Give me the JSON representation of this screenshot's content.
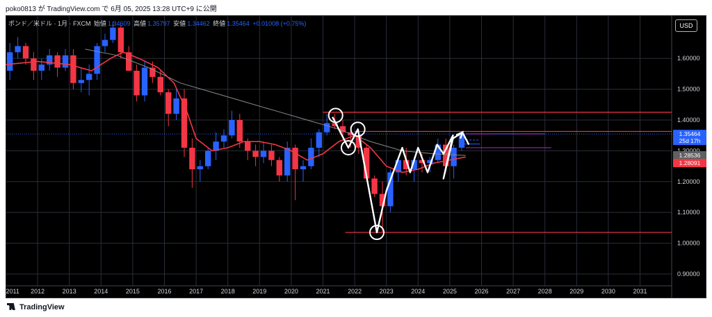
{
  "header": {
    "publish_line": "poko0813 が TradingView.com で 6月 05, 2025 13:28 UTC+9 に公開"
  },
  "legend": {
    "symbol": "ポンド／米ドル · 1月 · FXCM",
    "open_label": "始値",
    "open_value": "1.34609",
    "high_label": "高値",
    "high_value": "1.35797",
    "low_label": "安値",
    "low_value": "1.34462",
    "close_label": "終値",
    "close_value": "1.35464",
    "change": "+0.01008 (+0.75%)"
  },
  "currency_button": "USD",
  "price_axis": {
    "ticks": [
      "1.60000",
      "1.50000",
      "1.40000",
      "1.30000",
      "1.20000",
      "1.10000",
      "1.00000",
      "0.90000"
    ],
    "current_price": "1.35464",
    "countdown": "25d 17h",
    "ma_slow_value": "1.28536",
    "ma_fast_value": "1.28091"
  },
  "time_axis": {
    "ticks": [
      "2011",
      "2012",
      "2013",
      "2014",
      "2015",
      "2016",
      "2017",
      "2018",
      "2019",
      "2020",
      "2021",
      "2022",
      "2023",
      "2024",
      "2025",
      "2026",
      "2027",
      "2028",
      "2029",
      "2030",
      "2031"
    ]
  },
  "footer": {
    "brand": "TradingView"
  },
  "colors": {
    "up": "#2962ff",
    "down": "#f23645",
    "ma_fast": "#f23645",
    "ma_slow": "#8a8a8a",
    "drawing": "#ffffff",
    "level_line": "#f23645",
    "target_line": "#9c27b0",
    "background": "#000000",
    "grid": "#2a2e39"
  },
  "chart_data": {
    "type": "candlestick",
    "symbol": "GBPUSD",
    "interval": "1M",
    "ylim": [
      0.87,
      1.73
    ],
    "xlim": [
      2011.0,
      2032.0
    ],
    "grid": true,
    "candles": [
      [
        2011.0,
        1.56,
        1.65,
        1.53,
        1.62
      ],
      [
        2011.25,
        1.62,
        1.67,
        1.6,
        1.64
      ],
      [
        2011.5,
        1.64,
        1.65,
        1.58,
        1.6
      ],
      [
        2011.75,
        1.6,
        1.62,
        1.53,
        1.56
      ],
      [
        2012.0,
        1.56,
        1.6,
        1.53,
        1.58
      ],
      [
        2012.25,
        1.58,
        1.63,
        1.56,
        1.61
      ],
      [
        2012.5,
        1.61,
        1.62,
        1.54,
        1.57
      ],
      [
        2012.75,
        1.57,
        1.63,
        1.56,
        1.61
      ],
      [
        2013.0,
        1.61,
        1.63,
        1.5,
        1.52
      ],
      [
        2013.25,
        1.52,
        1.57,
        1.49,
        1.53
      ],
      [
        2013.5,
        1.53,
        1.58,
        1.48,
        1.55
      ],
      [
        2013.75,
        1.55,
        1.65,
        1.53,
        1.64
      ],
      [
        2014.0,
        1.64,
        1.68,
        1.62,
        1.66
      ],
      [
        2014.25,
        1.66,
        1.72,
        1.65,
        1.7
      ],
      [
        2014.5,
        1.7,
        1.71,
        1.6,
        1.62
      ],
      [
        2014.75,
        1.62,
        1.64,
        1.56,
        1.56
      ],
      [
        2015.0,
        1.56,
        1.58,
        1.46,
        1.48
      ],
      [
        2015.25,
        1.48,
        1.59,
        1.46,
        1.57
      ],
      [
        2015.5,
        1.57,
        1.59,
        1.52,
        1.54
      ],
      [
        2015.75,
        1.54,
        1.56,
        1.48,
        1.49
      ],
      [
        2016.0,
        1.49,
        1.5,
        1.38,
        1.42
      ],
      [
        2016.25,
        1.42,
        1.5,
        1.4,
        1.47
      ],
      [
        2016.5,
        1.47,
        1.5,
        1.28,
        1.31
      ],
      [
        2016.75,
        1.31,
        1.34,
        1.18,
        1.24
      ],
      [
        2017.0,
        1.24,
        1.27,
        1.2,
        1.25
      ],
      [
        2017.25,
        1.25,
        1.31,
        1.24,
        1.3
      ],
      [
        2017.5,
        1.3,
        1.36,
        1.27,
        1.33
      ],
      [
        2017.75,
        1.33,
        1.37,
        1.31,
        1.35
      ],
      [
        2018.0,
        1.35,
        1.43,
        1.34,
        1.4
      ],
      [
        2018.25,
        1.4,
        1.42,
        1.31,
        1.33
      ],
      [
        2018.5,
        1.33,
        1.34,
        1.27,
        1.3
      ],
      [
        2018.75,
        1.3,
        1.32,
        1.25,
        1.28
      ],
      [
        2019.0,
        1.28,
        1.33,
        1.26,
        1.3
      ],
      [
        2019.25,
        1.3,
        1.32,
        1.25,
        1.27
      ],
      [
        2019.5,
        1.27,
        1.28,
        1.2,
        1.22
      ],
      [
        2019.75,
        1.22,
        1.33,
        1.2,
        1.31
      ],
      [
        2020.0,
        1.31,
        1.32,
        1.14,
        1.24
      ],
      [
        2020.25,
        1.24,
        1.27,
        1.2,
        1.25
      ],
      [
        2020.5,
        1.25,
        1.34,
        1.24,
        1.31
      ],
      [
        2020.75,
        1.31,
        1.37,
        1.28,
        1.36
      ],
      [
        2021.0,
        1.36,
        1.42,
        1.35,
        1.39
      ],
      [
        2021.25,
        1.39,
        1.42,
        1.37,
        1.38
      ],
      [
        2021.5,
        1.38,
        1.4,
        1.34,
        1.36
      ],
      [
        2021.75,
        1.36,
        1.38,
        1.31,
        1.35
      ],
      [
        2022.0,
        1.35,
        1.37,
        1.29,
        1.31
      ],
      [
        2022.25,
        1.31,
        1.32,
        1.2,
        1.21
      ],
      [
        2022.5,
        1.21,
        1.22,
        1.15,
        1.16
      ],
      [
        2022.75,
        1.16,
        1.2,
        1.035,
        1.12
      ],
      [
        2023.0,
        1.12,
        1.24,
        1.1,
        1.23
      ],
      [
        2023.25,
        1.23,
        1.28,
        1.2,
        1.27
      ],
      [
        2023.5,
        1.27,
        1.31,
        1.22,
        1.24
      ],
      [
        2023.75,
        1.24,
        1.28,
        1.2,
        1.27
      ],
      [
        2024.0,
        1.27,
        1.29,
        1.23,
        1.26
      ],
      [
        2024.25,
        1.26,
        1.28,
        1.23,
        1.27
      ],
      [
        2024.5,
        1.27,
        1.34,
        1.26,
        1.32
      ],
      [
        2024.75,
        1.32,
        1.34,
        1.23,
        1.25
      ],
      [
        2025.0,
        1.25,
        1.32,
        1.21,
        1.31
      ],
      [
        2025.25,
        1.31,
        1.358,
        1.3,
        1.35464
      ]
    ],
    "ma_fast": [
      [
        2011.0,
        1.58
      ],
      [
        2012.0,
        1.59
      ],
      [
        2013.0,
        1.58
      ],
      [
        2013.7,
        1.56
      ],
      [
        2014.3,
        1.6
      ],
      [
        2014.7,
        1.62
      ],
      [
        2015.2,
        1.6
      ],
      [
        2015.8,
        1.57
      ],
      [
        2016.3,
        1.52
      ],
      [
        2016.7,
        1.43
      ],
      [
        2017.0,
        1.34
      ],
      [
        2017.5,
        1.3
      ],
      [
        2018.0,
        1.31
      ],
      [
        2018.5,
        1.33
      ],
      [
        2019.0,
        1.33
      ],
      [
        2019.5,
        1.32
      ],
      [
        2020.0,
        1.3
      ],
      [
        2020.5,
        1.27
      ],
      [
        2021.0,
        1.29
      ],
      [
        2021.5,
        1.33
      ],
      [
        2022.0,
        1.35
      ],
      [
        2022.5,
        1.31
      ],
      [
        2023.0,
        1.25
      ],
      [
        2023.5,
        1.23
      ],
      [
        2024.0,
        1.24
      ],
      [
        2024.5,
        1.26
      ],
      [
        2025.0,
        1.27
      ],
      [
        2025.5,
        1.28
      ]
    ],
    "ma_slow": [
      [
        2013.5,
        1.63
      ],
      [
        2014.5,
        1.61
      ],
      [
        2015.5,
        1.57
      ],
      [
        2016.5,
        1.52
      ],
      [
        2017.5,
        1.49
      ],
      [
        2018.5,
        1.46
      ],
      [
        2019.5,
        1.43
      ],
      [
        2020.5,
        1.4
      ],
      [
        2021.5,
        1.37
      ],
      [
        2022.5,
        1.33
      ],
      [
        2023.5,
        1.3
      ],
      [
        2024.5,
        1.29
      ],
      [
        2025.5,
        1.285
      ]
    ],
    "horizontal_lines": [
      {
        "price": 1.425,
        "from": 2021.0,
        "to": 2032.0,
        "color": "red"
      },
      {
        "price": 1.363,
        "from": 2022.0,
        "to": 2032.0,
        "color": "red"
      },
      {
        "price": 1.035,
        "from": 2021.7,
        "to": 2032.0,
        "color": "red"
      },
      {
        "price": 1.355,
        "from": 2025.5,
        "to": 2028.0,
        "color": "purple"
      },
      {
        "price": 1.31,
        "from": 2025.5,
        "to": 2028.2,
        "color": "purple"
      }
    ],
    "drawing_path": [
      [
        2021.3,
        1.41
      ],
      [
        2021.8,
        1.31
      ],
      [
        2022.1,
        1.37
      ],
      [
        2022.7,
        1.035
      ],
      [
        2023.0,
        1.17
      ],
      [
        2023.5,
        1.31
      ],
      [
        2023.75,
        1.23
      ],
      [
        2024.0,
        1.31
      ],
      [
        2024.3,
        1.23
      ],
      [
        2024.6,
        1.32
      ],
      [
        2024.8,
        1.29
      ],
      [
        2025.1,
        1.35
      ],
      [
        2024.8,
        1.21
      ],
      [
        2025.1,
        1.34
      ],
      [
        2025.4,
        1.36
      ],
      [
        2025.6,
        1.32
      ]
    ],
    "circles": [
      [
        2021.4,
        1.415
      ],
      [
        2021.8,
        1.31
      ],
      [
        2022.1,
        1.37
      ],
      [
        2022.7,
        1.035
      ]
    ]
  }
}
